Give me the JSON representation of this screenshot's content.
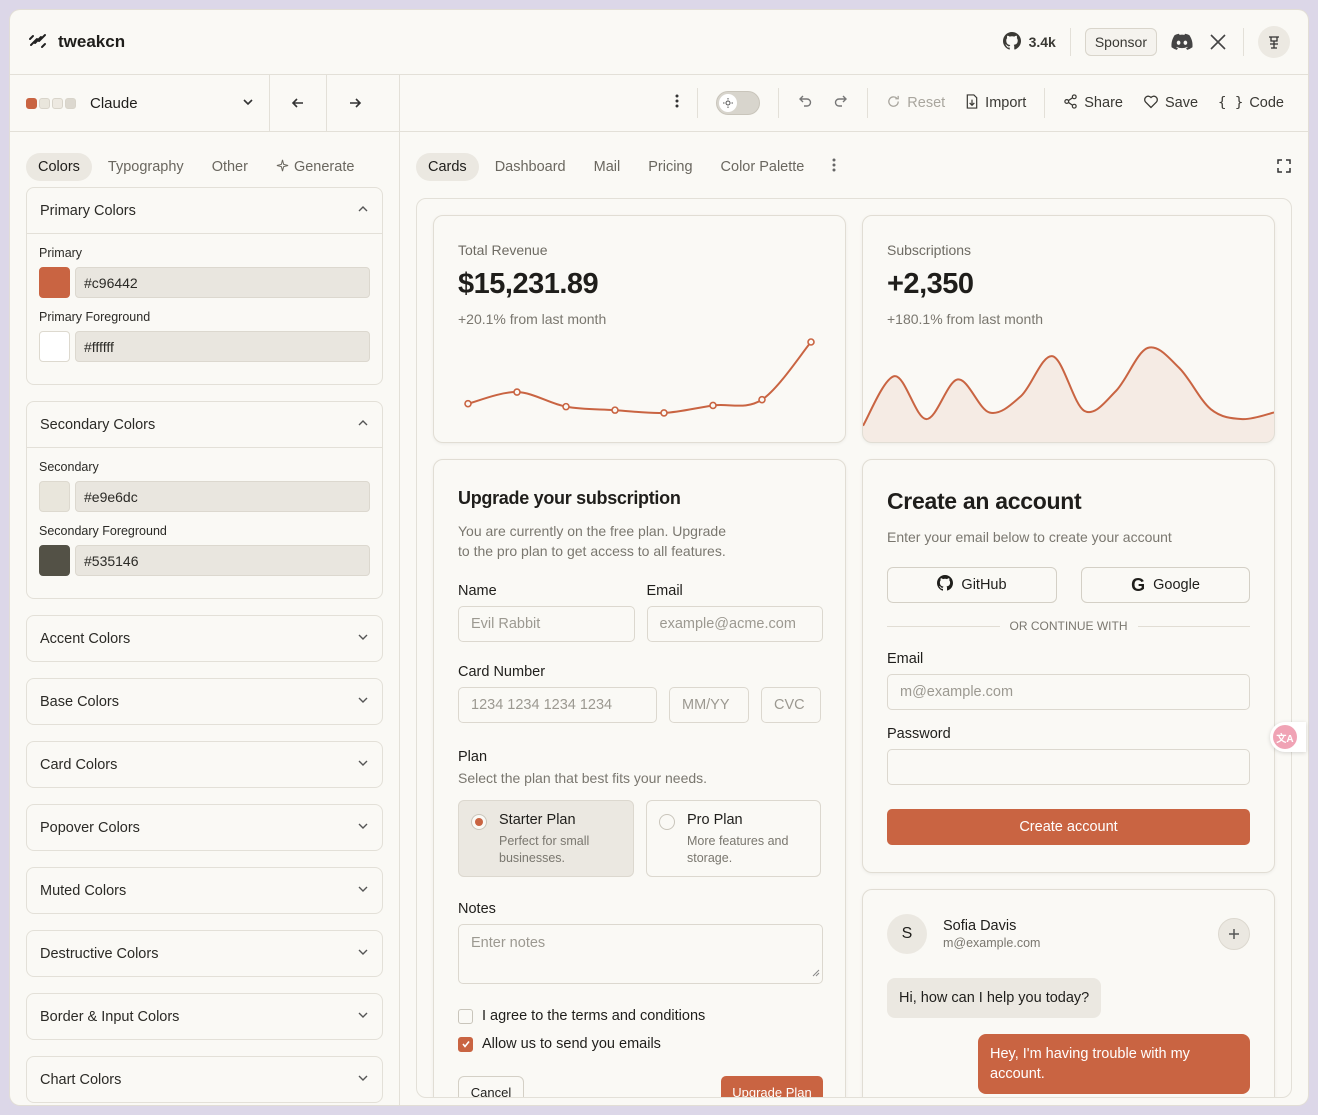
{
  "app": {
    "name": "tweakcn",
    "github_stars": "3.4k",
    "sponsor_label": "Sponsor"
  },
  "theme": {
    "name": "Claude",
    "swatch_colors": [
      "#c96442",
      "#e9e6dc",
      "#ede9e1",
      "#dcd8cf"
    ]
  },
  "sidebar": {
    "tabs": [
      "Colors",
      "Typography",
      "Other",
      "Generate"
    ],
    "primary": {
      "title": "Primary Colors",
      "fields": [
        {
          "label": "Primary",
          "value": "#c96442",
          "color": "#c96442"
        },
        {
          "label": "Primary Foreground",
          "value": "#ffffff",
          "color": "#ffffff"
        }
      ]
    },
    "secondary": {
      "title": "Secondary Colors",
      "fields": [
        {
          "label": "Secondary",
          "value": "#e9e6dc",
          "color": "#e9e6dc"
        },
        {
          "label": "Secondary Foreground",
          "value": "#535146",
          "color": "#535146"
        }
      ]
    },
    "collapsed": [
      "Accent Colors",
      "Base Colors",
      "Card Colors",
      "Popover Colors",
      "Muted Colors",
      "Destructive Colors",
      "Border & Input Colors",
      "Chart Colors"
    ]
  },
  "toolbar": {
    "reset": "Reset",
    "import": "Import",
    "share": "Share",
    "save": "Save",
    "code": "Code"
  },
  "preview_tabs": [
    "Cards",
    "Dashboard",
    "Mail",
    "Pricing",
    "Color Palette"
  ],
  "revenue": {
    "label": "Total Revenue",
    "value": "$15,231.89",
    "sub": "+20.1% from last month",
    "chart_data": {
      "type": "line",
      "values": [
        10400,
        14405,
        9400,
        8200,
        7250,
        9800,
        11800,
        31600
      ]
    }
  },
  "subscriptions": {
    "label": "Subscriptions",
    "value": "+2,350",
    "sub": "+180.1% from last month",
    "chart_data": {
      "type": "area",
      "values": [
        5,
        35,
        9,
        33,
        13,
        23,
        47,
        14,
        26,
        52,
        40,
        15,
        9,
        13
      ]
    }
  },
  "upgrade": {
    "title": "Upgrade your subscription",
    "desc1": "You are currently on the free plan. Upgrade",
    "desc2": "to the pro plan to get access to all features.",
    "name_label": "Name",
    "name_placeholder": "Evil Rabbit",
    "email_label": "Email",
    "email_placeholder": "example@acme.com",
    "card_label": "Card Number",
    "card_placeholder": "1234 1234 1234 1234",
    "mmyy": "MM/YY",
    "cvc": "CVC",
    "plan_label": "Plan",
    "plan_desc": "Select the plan that best fits your needs.",
    "plans": [
      {
        "title": "Starter Plan",
        "desc": "Perfect for small businesses."
      },
      {
        "title": "Pro Plan",
        "desc": "More features and storage."
      }
    ],
    "notes_label": "Notes",
    "notes_placeholder": "Enter notes",
    "terms": "I agree to the terms and conditions",
    "emails": "Allow us to send you emails",
    "cancel": "Cancel",
    "submit": "Upgrade Plan"
  },
  "account": {
    "title": "Create an account",
    "desc": "Enter your email below to create your account",
    "github": "GitHub",
    "google": "Google",
    "divider": "OR CONTINUE WITH",
    "email_label": "Email",
    "email_placeholder": "m@example.com",
    "password_label": "Password",
    "submit": "Create account"
  },
  "chat": {
    "initial": "S",
    "name": "Sofia Davis",
    "email": "m@example.com",
    "msg1": "Hi, how can I help you today?",
    "msg2": "Hey, I'm having trouble with my account."
  },
  "translate_badge": "文A"
}
